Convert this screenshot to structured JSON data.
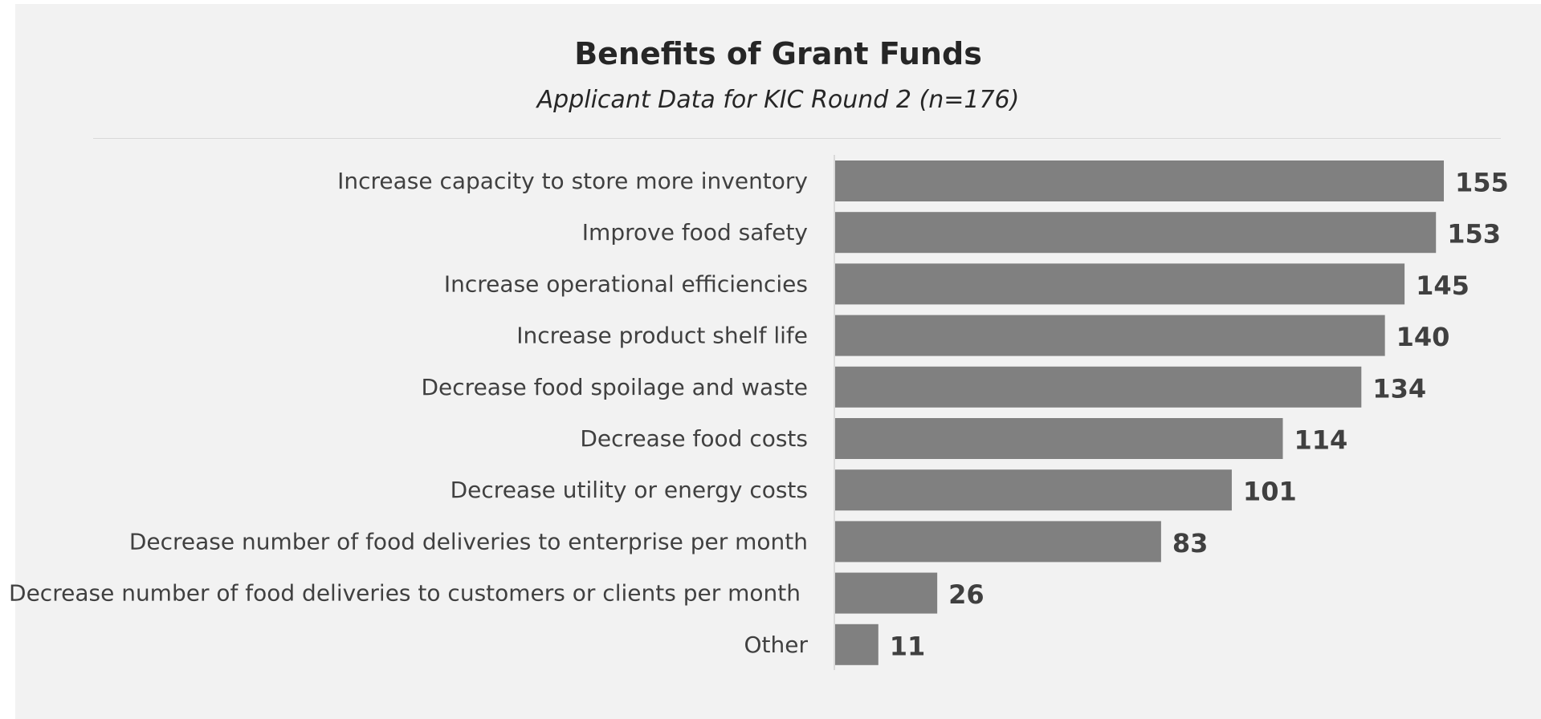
{
  "chart_data": {
    "type": "bar",
    "orientation": "horizontal",
    "title": "Benefits of Grant Funds",
    "subtitle": "Applicant Data for KIC Round 2 (n=176)",
    "categories": [
      "Increase capacity to store more inventory",
      "Improve food safety",
      "Increase operational efficiencies",
      "Increase product shelf life",
      "Decrease food spoilage and waste",
      "Decrease food costs",
      "Decrease utility or energy costs",
      "Decrease number of food deliveries to enterprise per month",
      "Decrease number of food deliveries to customers or clients per month",
      "Other"
    ],
    "values": [
      155,
      153,
      145,
      140,
      134,
      114,
      101,
      83,
      26,
      11
    ],
    "xlim": [
      0,
      155
    ],
    "grid": false,
    "legend": "none",
    "data_labels": true,
    "bar_color": "#808080"
  }
}
